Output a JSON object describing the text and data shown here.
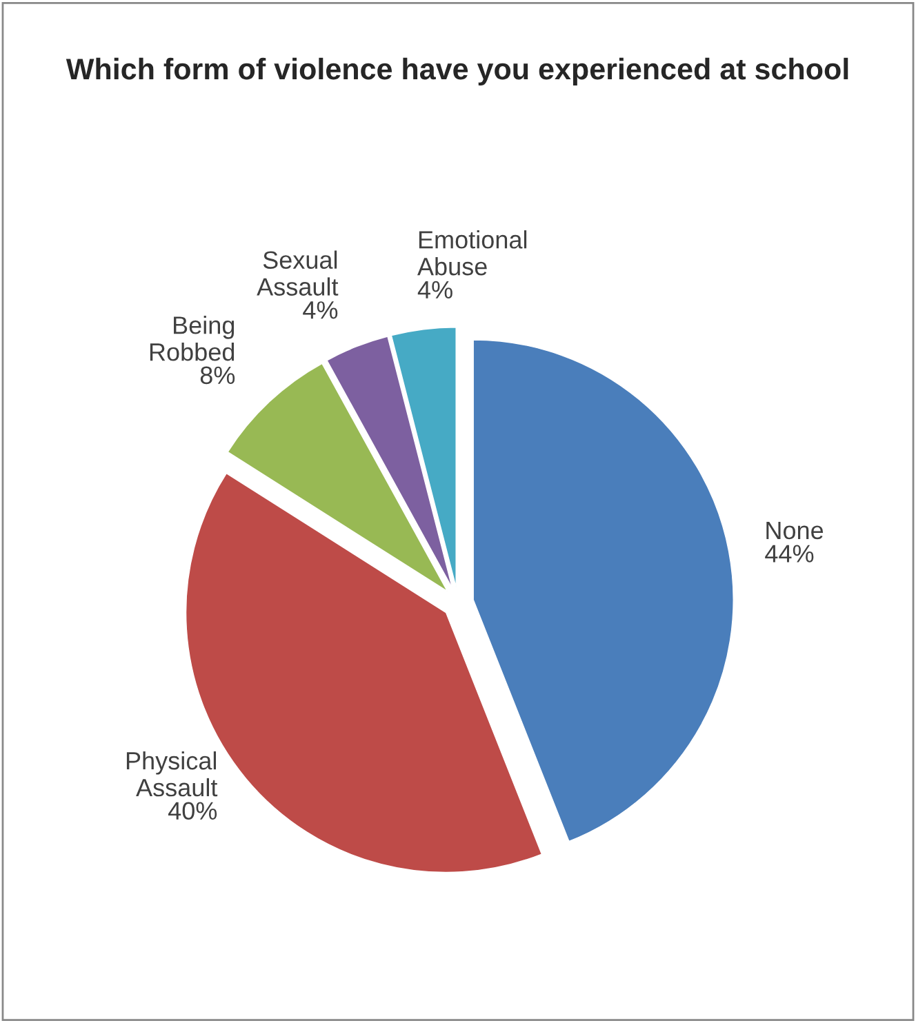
{
  "chart_data": {
    "type": "pie",
    "title": "Which form of violence have you experienced at school",
    "categories": [
      "None",
      "Physical Assault",
      "Being Robbed",
      "Sexual Assault",
      "Emotional Abuse"
    ],
    "values": [
      44,
      40,
      8,
      4,
      4
    ],
    "colors": [
      "#4a7ebb",
      "#be4b48",
      "#98b954",
      "#7d60a0",
      "#46aac5"
    ],
    "value_labels": [
      "44%",
      "40%",
      "8%",
      "4%",
      "4%"
    ],
    "legend": false
  }
}
